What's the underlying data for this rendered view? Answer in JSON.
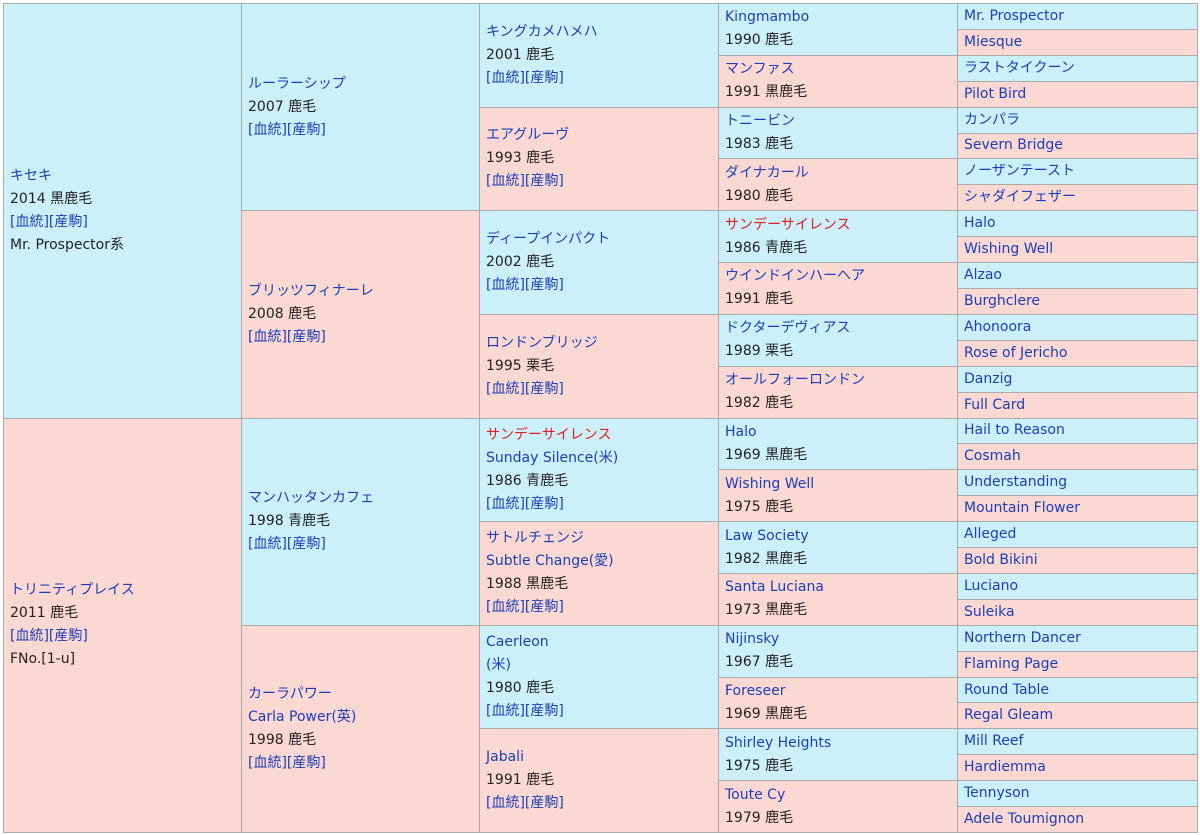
{
  "pedigree": {
    "subject": {
      "name": "キセキ",
      "info": "2014 黒鹿毛",
      "links": "[血統][産駒]",
      "line": "Mr. Prospector系"
    },
    "sire": {
      "name": "ルーラーシップ",
      "info": "2007 鹿毛",
      "links": "[血統][産駒]"
    },
    "sire_sire": {
      "name": "キングカメハメハ",
      "info": "2001 鹿毛",
      "links": "[血統][産駒]"
    },
    "sire_dam": {
      "name": "エアグルーヴ",
      "info": "1993 鹿毛",
      "links": "[血統][産駒]"
    },
    "bmsire": {
      "name": "ブリッツフィナーレ",
      "info": "2008 鹿毛",
      "links": "[血統][産駒]"
    },
    "bm_sire": {
      "name": "ディープインパクト",
      "info": "2002 鹿毛",
      "links": "[血統][産駒]"
    },
    "bm_dam": {
      "name": "ロンドンブリッジ",
      "info": "1995 栗毛",
      "links": "[血統][産駒]"
    },
    "dam": {
      "name": "トリニティプレイス",
      "info": "2011 鹿毛",
      "links": "[血統][産駒]",
      "family": "FNo.[1-u]"
    },
    "dam_sire": {
      "name": "マンハッタンカフェ",
      "info": "1998 青鹿毛",
      "links": "[血統][産駒]"
    },
    "dam_sire_sire": {
      "name": "サンデーサイレンス",
      "alt": "Sunday Silence(米)",
      "info": "1986 青鹿毛",
      "links": "[血統][産駒]"
    },
    "dam_sire_dam": {
      "name": "サトルチェンジ",
      "alt": "Subtle Change(愛)",
      "info": "1988 黒鹿毛",
      "links": "[血統][産駒]"
    },
    "dam_dam": {
      "name": "カーラパワー",
      "alt": "Carla Power(英)",
      "info": "1998 鹿毛",
      "links": "[血統][産駒]"
    },
    "dam_dam_sire": {
      "name": "Caerleon",
      "alt": "(米)",
      "info": "1980 鹿毛",
      "links": "[血統][産駒]"
    },
    "dam_dam_dam": {
      "name": "Jabali",
      "info": "1991 鹿毛",
      "links": "[血統][産駒]"
    },
    "gen4": [
      {
        "name": "Kingmambo",
        "info": "1990 鹿毛"
      },
      {
        "name": "マンファス",
        "info": "1991 黒鹿毛"
      },
      {
        "name": "トニービン",
        "info": "1983 鹿毛"
      },
      {
        "name": "ダイナカール",
        "info": "1980 鹿毛"
      },
      {
        "name": "サンデーサイレンス",
        "info": "1986 青鹿毛"
      },
      {
        "name": "ウインドインハーヘア",
        "info": "1991 鹿毛"
      },
      {
        "name": "ドクターデヴィアス",
        "info": "1989 栗毛"
      },
      {
        "name": "オールフォーロンドン",
        "info": "1982 鹿毛"
      },
      {
        "name": "Halo",
        "info": "1969 黒鹿毛"
      },
      {
        "name": "Wishing Well",
        "info": "1975 鹿毛"
      },
      {
        "name": "Law Society",
        "info": "1982 黒鹿毛"
      },
      {
        "name": "Santa Luciana",
        "info": "1973 黒鹿毛"
      },
      {
        "name": "Nijinsky",
        "info": "1967 鹿毛"
      },
      {
        "name": "Foreseer",
        "info": "1969 黒鹿毛"
      },
      {
        "name": "Shirley Heights",
        "info": "1975 鹿毛"
      },
      {
        "name": "Toute Cy",
        "info": "1979 鹿毛"
      }
    ],
    "gen5": [
      "Mr. Prospector",
      "Miesque",
      "ラストタイクーン",
      "Pilot Bird",
      "カンパラ",
      "Severn Bridge",
      "ノーザンテースト",
      "シャダイフェザー",
      "Halo",
      "Wishing Well",
      "Alzao",
      "Burghclere",
      "Ahonoora",
      "Rose of Jericho",
      "Danzig",
      "Full Card",
      "Hail to Reason",
      "Cosmah",
      "Understanding",
      "Mountain Flower",
      "Alleged",
      "Bold Bikini",
      "Luciano",
      "Suleika",
      "Northern Dancer",
      "Flaming Page",
      "Round Table",
      "Regal Gleam",
      "Mill Reef",
      "Hardiemma",
      "Tennyson",
      "Adele Toumignon"
    ]
  },
  "colors": {
    "male_bg": "#ccf0fa",
    "female_bg": "#fcd8d3",
    "link": "#1a3fb8",
    "highlight": "#dd1f1f"
  }
}
